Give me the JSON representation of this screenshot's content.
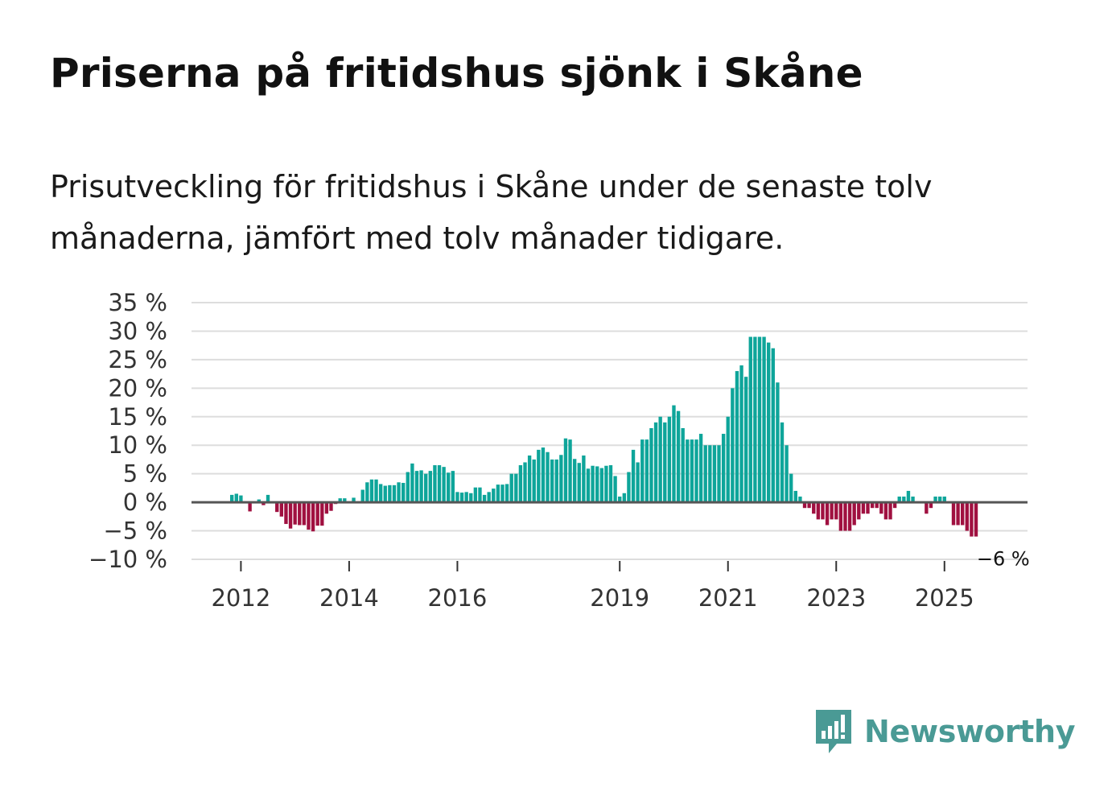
{
  "title": "Priserna på fritidshus sjönk i Skåne",
  "subtitle": "Prisutveckling för fritidshus i Skåne under de senaste tolv månaderna, jämfört med tolv månader tidigare.",
  "brand": {
    "name": "Newsworthy",
    "color": "#4a9a95"
  },
  "colors": {
    "positive": "#0ea59a",
    "negative": "#a01040",
    "grid": "#dddddd",
    "zero_line": "#555555"
  },
  "chart_data": {
    "type": "bar",
    "start": "2011-11",
    "frequency": "monthly",
    "unit": "%",
    "ylim": [
      -10,
      35
    ],
    "y_ticks": [
      35,
      30,
      25,
      20,
      15,
      10,
      5,
      0,
      -5,
      -10
    ],
    "y_tick_labels": [
      "35 %",
      "30 %",
      "25 %",
      "20 %",
      "15 %",
      "10 %",
      "5 %",
      "0 %",
      "−5 %",
      "−10 %"
    ],
    "x_tick_labels": [
      "2012",
      "2014",
      "2016",
      "2019",
      "2021",
      "2023",
      "2025"
    ],
    "values": [
      1.3,
      1.5,
      1.2,
      0,
      -1.6,
      0,
      0.5,
      -0.5,
      1.3,
      0,
      -1.7,
      -2.5,
      -3.8,
      -4.6,
      -3.9,
      -4.0,
      -4.0,
      -4.8,
      -5.1,
      -4.1,
      -4.1,
      -2.0,
      -1.5,
      -0.3,
      0.7,
      0.7,
      0,
      0.8,
      0,
      2.2,
      3.5,
      4.0,
      4.0,
      3.2,
      2.9,
      3.0,
      3.0,
      3.5,
      3.4,
      5.3,
      6.8,
      5.5,
      5.6,
      5.0,
      5.5,
      6.5,
      6.5,
      6.2,
      5.2,
      5.5,
      1.8,
      1.7,
      1.8,
      1.6,
      2.6,
      2.6,
      1.3,
      1.8,
      2.4,
      3.1,
      3.1,
      3.2,
      5.0,
      5.0,
      6.5,
      7.0,
      8.2,
      7.5,
      9.2,
      9.6,
      8.8,
      7.5,
      7.5,
      8.3,
      11.2,
      11.0,
      7.6,
      6.9,
      8.2,
      5.9,
      6.4,
      6.3,
      6.0,
      6.4,
      6.5,
      4.6,
      1.0,
      1.6,
      5.3,
      9.2,
      7.0,
      11.0,
      11.0,
      13.0,
      14.0,
      15.0,
      14.0,
      15.0,
      17.0,
      16.0,
      13.0,
      11.0,
      11.0,
      11.0,
      12.0,
      10.0,
      10.0,
      10.0,
      10.0,
      12.0,
      15.0,
      20.0,
      23.0,
      24.0,
      22.0,
      29.0,
      29.0,
      29.0,
      29.0,
      28.0,
      27.0,
      21.0,
      14.0,
      10.0,
      5.0,
      2.0,
      1.0,
      -1.0,
      -1.0,
      -2.0,
      -3.0,
      -3.0,
      -4.0,
      -3.0,
      -3.0,
      -5.0,
      -5.0,
      -5.0,
      -4.0,
      -3.0,
      -2.0,
      -2.0,
      -1.0,
      -1.0,
      -2.0,
      -3.0,
      -3.0,
      -1.0,
      1.0,
      1.0,
      2.0,
      1.0,
      0,
      0,
      -2.0,
      -1.0,
      1.0,
      1.0,
      1.0,
      0,
      -4.0,
      -4.0,
      -4.0,
      -5.0,
      -6.0,
      -6.0
    ],
    "end_label": "−6 %"
  }
}
